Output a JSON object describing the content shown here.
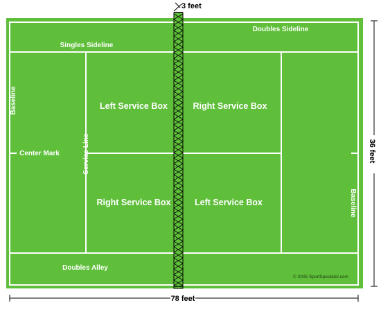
{
  "labels": {
    "doubles_sideline": "Doubles Sideline",
    "singles_sideline": "Singles Sideline",
    "baseline_left": "Baseline",
    "baseline_right": "Baseline",
    "center_mark": "Center Mark",
    "service_line": "Service Line",
    "left_service_box_top": "Left Service Box",
    "right_service_box_top": "Right Service Box",
    "right_service_box_bottom": "Right Service Box",
    "left_service_box_bottom": "Left Service Box",
    "doubles_alley": "Doubles Alley"
  },
  "dimensions": {
    "net_height": "3 feet",
    "court_width": "36 feet",
    "court_length": "78 feet"
  },
  "credit": "© 2005 SportSpectator.com",
  "colors": {
    "court": "#5fbf3a",
    "lines": "#ffffff",
    "net": "#000000",
    "dimension": "#000000"
  }
}
